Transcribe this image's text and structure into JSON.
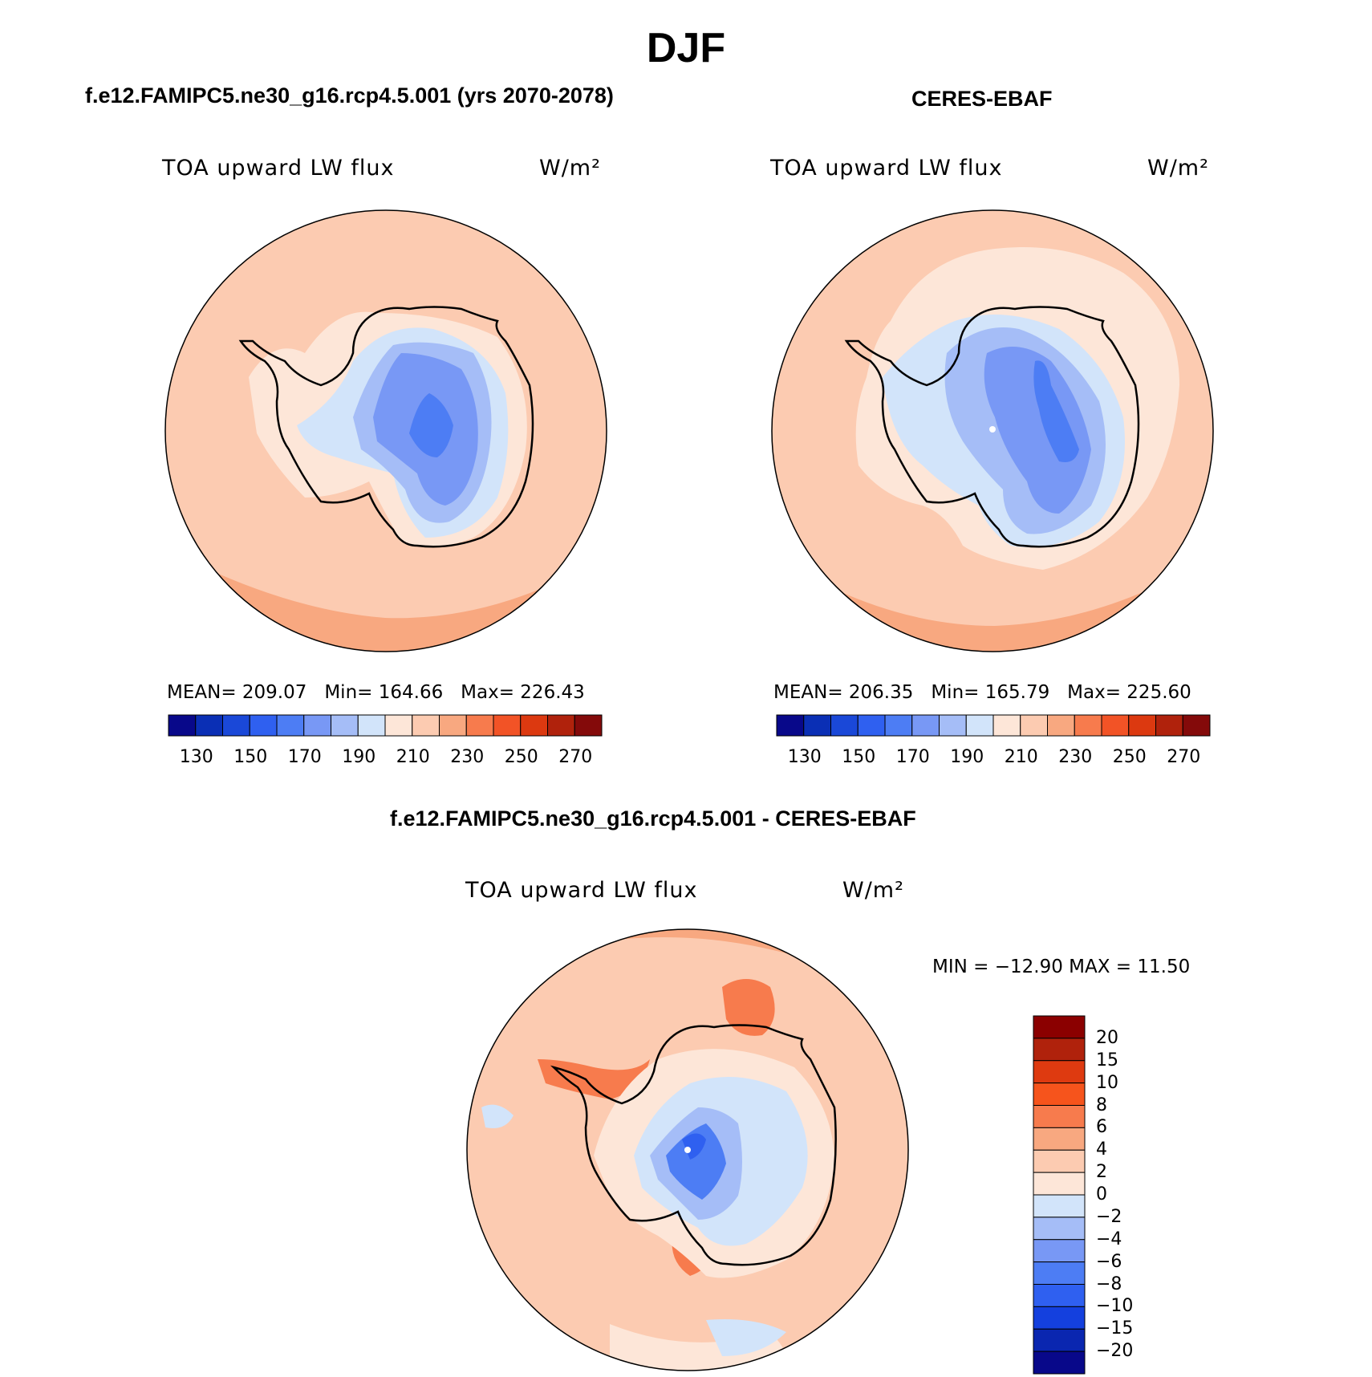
{
  "title": "DJF",
  "left_panel": {
    "case_title": "f.e12.FAMIPC5.ne30_g16.rcp4.5.001 (yrs 2070-2078)",
    "variable": "TOA upward LW flux",
    "units": "W/m²",
    "stats": {
      "mean_label": "MEAN=",
      "mean": "209.07",
      "min_label": "Min=",
      "min": "164.66",
      "max_label": "Max=",
      "max": "226.43"
    }
  },
  "right_panel": {
    "case_title": "CERES-EBAF",
    "variable": "TOA upward LW flux",
    "units": "W/m²",
    "stats": {
      "mean_label": "MEAN=",
      "mean": "206.35",
      "min_label": "Min=",
      "min": "165.79",
      "max_label": "Max=",
      "max": "225.60"
    }
  },
  "diff_panel": {
    "case_title": "f.e12.FAMIPC5.ne30_g16.rcp4.5.001 - CERES-EBAF",
    "variable": "TOA upward LW flux",
    "units": "W/m²",
    "minmax_text": "MIN = −12.90 MAX =  11.50"
  },
  "abs_colorbar": {
    "colors": [
      "#08088a",
      "#0a2fb5",
      "#1a48d8",
      "#2f60f0",
      "#4d7df4",
      "#7898f5",
      "#a5bdf7",
      "#d2e4fa",
      "#fde6d8",
      "#fccbb1",
      "#f8a880",
      "#f77b4d",
      "#f25326",
      "#dc3910",
      "#b0220c",
      "#840a0a"
    ],
    "tick_labels": [
      "130",
      "150",
      "170",
      "190",
      "210",
      "230",
      "250",
      "270"
    ]
  },
  "diff_colorbar": {
    "colors": [
      "#8b0000",
      "#b0220c",
      "#de3a10",
      "#f6541c",
      "#f77b4d",
      "#f8a880",
      "#fccbb1",
      "#fde6d8",
      "#d2e4fa",
      "#a5bdf7",
      "#7898f5",
      "#4d7df4",
      "#2f60f0",
      "#1440de",
      "#0a26b0",
      "#08088a"
    ],
    "tick_labels": [
      "20",
      "15",
      "10",
      "8",
      "6",
      "4",
      "2",
      "0",
      "−2",
      "−4",
      "−6",
      "−8",
      "−10",
      "−15",
      "−20"
    ]
  }
}
